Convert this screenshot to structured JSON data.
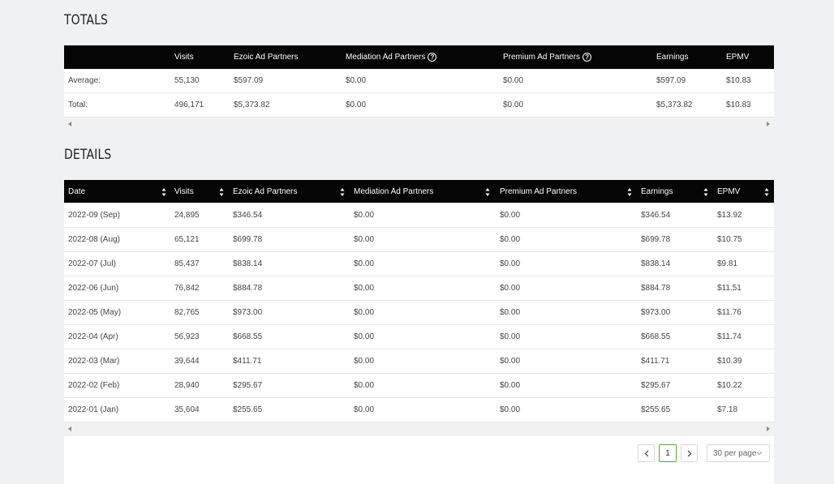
{
  "totals": {
    "title": "TOTALS",
    "headers": [
      "",
      "Visits",
      "Ezoic Ad Partners",
      "Mediation Ad Partners",
      "Premium Ad Partners",
      "Earnings",
      "EPMV"
    ],
    "rows": [
      [
        "Average:",
        "55,130",
        "$597.09",
        "$0.00",
        "$0.00",
        "$597.09",
        "$10.83"
      ],
      [
        "Total:",
        "496,171",
        "$5,373.82",
        "$0.00",
        "$0.00",
        "$5,373.82",
        "$10.83"
      ]
    ]
  },
  "details": {
    "title": "DETAILS",
    "headers": [
      "Date",
      "Visits",
      "Ezoic Ad Partners",
      "Mediation Ad Partners",
      "Premium Ad Partners",
      "Earnings",
      "EPMV"
    ],
    "rows": [
      [
        "2022-09 (Sep)",
        "24,895",
        "$346.54",
        "$0.00",
        "$0.00",
        "$346.54",
        "$13.92"
      ],
      [
        "2022-08 (Aug)",
        "65,121",
        "$699.78",
        "$0.00",
        "$0.00",
        "$699.78",
        "$10.75"
      ],
      [
        "2022-07 (Jul)",
        "85,437",
        "$838.14",
        "$0.00",
        "$0.00",
        "$838.14",
        "$9.81"
      ],
      [
        "2022-06 (Jun)",
        "76,842",
        "$884.78",
        "$0.00",
        "$0.00",
        "$884.78",
        "$11.51"
      ],
      [
        "2022-05 (May)",
        "82,765",
        "$973.00",
        "$0.00",
        "$0.00",
        "$973.00",
        "$11.76"
      ],
      [
        "2022-04 (Apr)",
        "56,923",
        "$668.55",
        "$0.00",
        "$0.00",
        "$668.55",
        "$11.74"
      ],
      [
        "2022-03 (Mar)",
        "39,644",
        "$411.71",
        "$0.00",
        "$0.00",
        "$411.71",
        "$10.39"
      ],
      [
        "2022-02 (Feb)",
        "28,940",
        "$295.67",
        "$0.00",
        "$0.00",
        "$295.67",
        "$10.22"
      ],
      [
        "2022-01 (Jan)",
        "35,604",
        "$255.65",
        "$0.00",
        "$0.00",
        "$255.65",
        "$7.18"
      ]
    ]
  },
  "pagination": {
    "current_page": "1",
    "page_size": "30 per page"
  },
  "icons": {
    "help": "help-circle-icon",
    "sort": "sort-icon",
    "prev": "chevron-left-icon",
    "next": "chevron-right-icon",
    "dropdown": "chevron-down-icon"
  },
  "colors": {
    "header_bg": "#050505",
    "page_bg": "#eff1f4",
    "active_page_border": "#5fa53a"
  }
}
